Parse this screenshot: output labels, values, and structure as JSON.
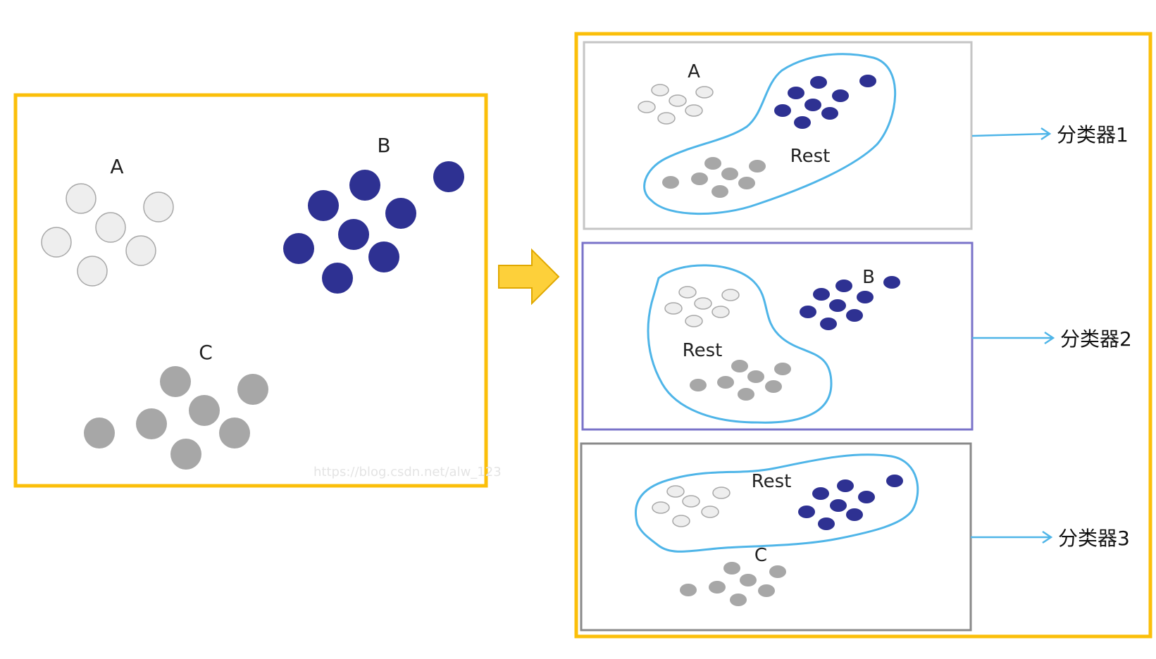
{
  "colors": {
    "frame_orange": "#FBBF0A",
    "arrow_fill": "#FDD03A",
    "arrow_stroke": "#E0A800",
    "light_point": "#EEEEEE",
    "light_point_stroke": "#A8A8A8",
    "blue_point": "#2E3192",
    "gray_point": "#A7A7A7",
    "blob_stroke": "#4FB5E8",
    "panel1_border": "#C5C5C5",
    "panel2_border": "#7A73C9",
    "panel3_border": "#8A8A8A"
  },
  "left": {
    "label_a": "A",
    "label_b": "B",
    "label_c": "C",
    "watermark": "https://blog.csdn.net/alw_123"
  },
  "panels": [
    {
      "rest_label": "Rest",
      "class_label": "A",
      "classifier": "分类器1"
    },
    {
      "rest_label": "Rest",
      "class_label": "B",
      "classifier": "分类器2"
    },
    {
      "rest_label": "Rest",
      "class_label": "C",
      "classifier": "分类器3"
    }
  ]
}
